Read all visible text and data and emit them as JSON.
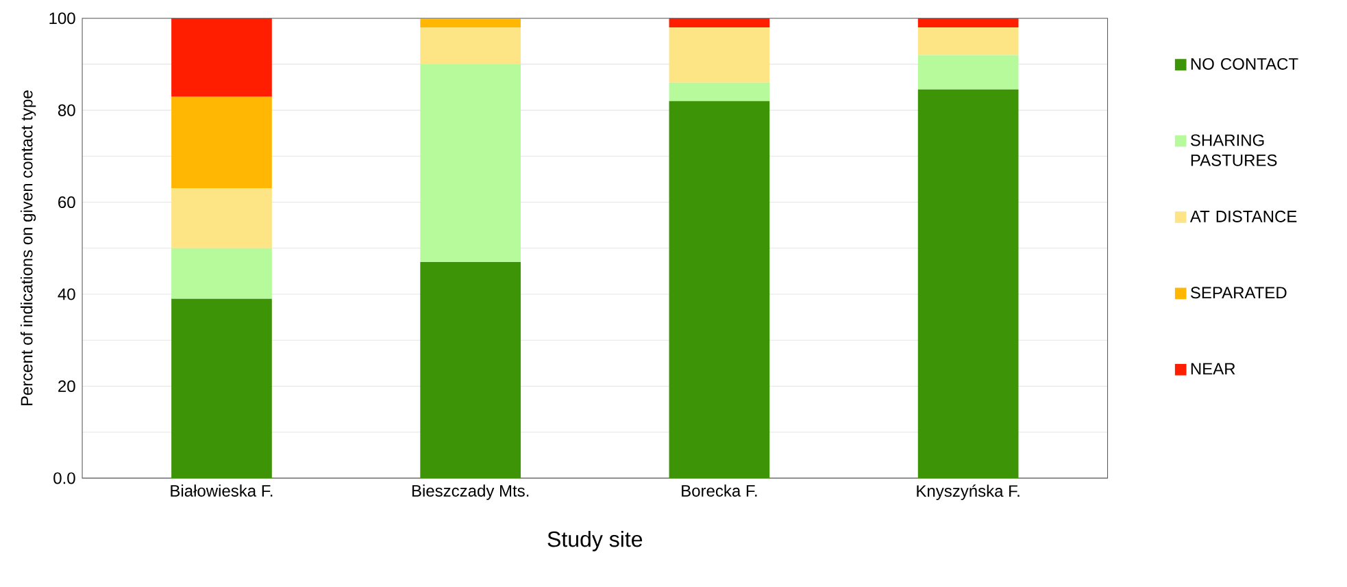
{
  "chart_data": {
    "type": "bar",
    "stacked": true,
    "xlabel": "Study site",
    "ylabel": "Percent of indications on given contact type",
    "categories": [
      "Białowieska F.",
      "Bieszczady Mts.",
      "Borecka F.",
      "Knyszyńska F."
    ],
    "series": [
      {
        "name": "NO CONTACT",
        "color": "#3d9407",
        "values": [
          39,
          47,
          82,
          84.5
        ]
      },
      {
        "name": "SHARING PASTURES",
        "color": "#b6fa9c",
        "values": [
          11,
          43,
          4,
          7.5
        ]
      },
      {
        "name": "AT DISTANCE",
        "color": "#fde585",
        "values": [
          13,
          8,
          12,
          6
        ]
      },
      {
        "name": "SEPARATED",
        "color": "#ffb703",
        "values": [
          20,
          2,
          0,
          0
        ]
      },
      {
        "name": "NEAR",
        "color": "#ff1e00",
        "values": [
          17,
          0,
          2,
          2
        ]
      }
    ],
    "ylim": [
      0,
      100
    ],
    "yticks": [
      {
        "value": 0,
        "label": "0.0"
      },
      {
        "value": 10,
        "label": null
      },
      20,
      {
        "value": 30,
        "label": null
      },
      40,
      {
        "value": 50,
        "label": null
      },
      60,
      {
        "value": 70,
        "label": null
      },
      80,
      {
        "value": 90,
        "label": null
      },
      100
    ],
    "grid": "y",
    "legend": "right"
  }
}
